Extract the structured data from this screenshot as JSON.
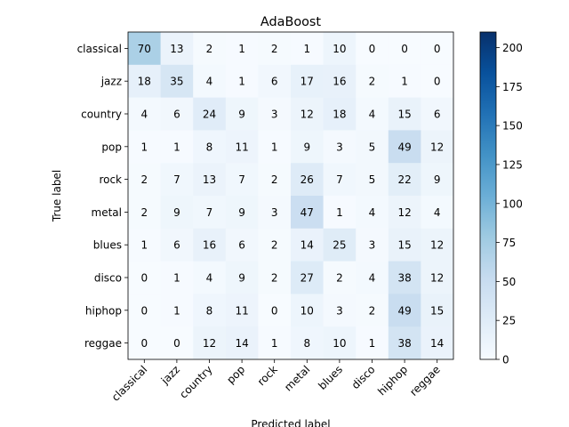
{
  "chart_data": {
    "type": "heatmap",
    "title": "AdaBoost",
    "xlabel": "Predicted label",
    "ylabel": "True label",
    "row_labels": [
      "classical",
      "jazz",
      "country",
      "pop",
      "rock",
      "metal",
      "blues",
      "disco",
      "hiphop",
      "reggae"
    ],
    "col_labels": [
      "classical",
      "jazz",
      "country",
      "pop",
      "rock",
      "metal",
      "blues",
      "disco",
      "hiphop",
      "reggae"
    ],
    "values": [
      [
        70,
        13,
        2,
        1,
        2,
        1,
        10,
        0,
        0,
        0
      ],
      [
        18,
        35,
        4,
        1,
        6,
        17,
        16,
        2,
        1,
        0
      ],
      [
        4,
        6,
        24,
        9,
        3,
        12,
        18,
        4,
        15,
        6
      ],
      [
        1,
        1,
        8,
        11,
        1,
        9,
        3,
        5,
        49,
        12
      ],
      [
        2,
        7,
        13,
        7,
        2,
        26,
        7,
        5,
        22,
        9
      ],
      [
        2,
        9,
        7,
        9,
        3,
        47,
        1,
        4,
        12,
        4
      ],
      [
        1,
        6,
        16,
        6,
        2,
        14,
        25,
        3,
        15,
        12
      ],
      [
        0,
        1,
        4,
        9,
        2,
        27,
        2,
        4,
        38,
        12
      ],
      [
        0,
        1,
        8,
        11,
        0,
        10,
        3,
        2,
        49,
        15
      ],
      [
        0,
        0,
        12,
        14,
        1,
        8,
        10,
        1,
        38,
        14
      ]
    ],
    "colorbar": {
      "min": 0,
      "max": 210,
      "ticks": [
        0,
        25,
        50,
        75,
        100,
        125,
        150,
        175,
        200
      ]
    },
    "colormap": "Blues",
    "text_threshold": 105,
    "grid": false
  }
}
